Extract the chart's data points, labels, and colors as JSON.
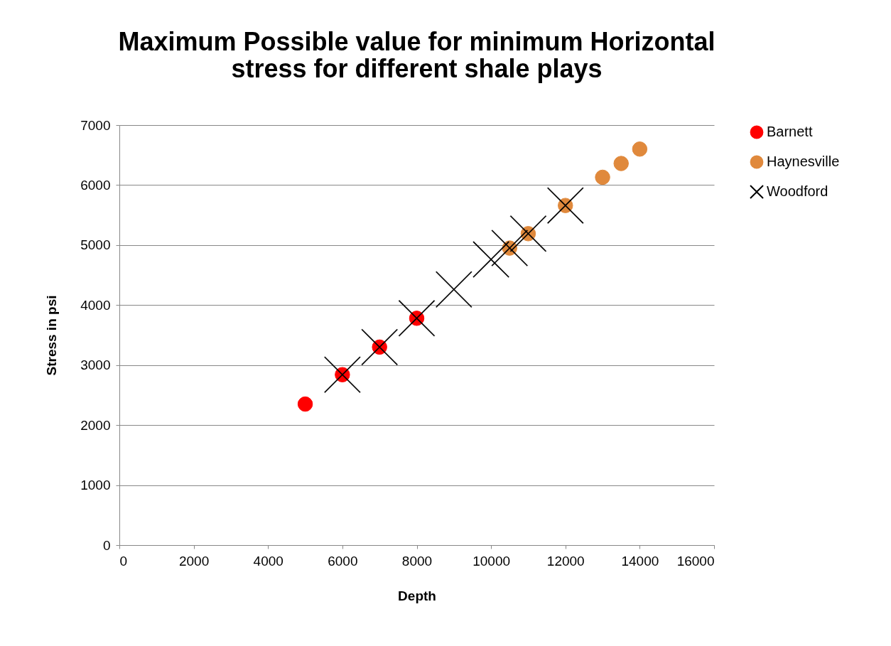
{
  "chart_data": {
    "type": "scatter",
    "title": [
      "Maximum Possible value for minimum Horizontal",
      "stress for different shale plays"
    ],
    "xlabel": "Depth",
    "ylabel": "Stress in psi",
    "xlim": [
      0,
      16000
    ],
    "xticks": [
      0,
      2000,
      4000,
      6000,
      8000,
      10000,
      12000,
      14000,
      16000
    ],
    "ylim": [
      0,
      7000
    ],
    "yticks": [
      0,
      1000,
      2000,
      3000,
      4000,
      5000,
      6000,
      7000
    ],
    "grid": "y",
    "legend": "right",
    "series": [
      {
        "name": "Barnett",
        "color": "#ff0000",
        "marker": "circle",
        "x": [
          5000,
          6000,
          7000,
          8000
        ],
        "values": [
          2350,
          2840,
          3300,
          3780
        ]
      },
      {
        "name": "Haynesville",
        "color": "#e0893c",
        "marker": "circle",
        "x": [
          10500,
          11000,
          12000,
          13000,
          13500,
          14000
        ],
        "values": [
          4950,
          5190,
          5660,
          6130,
          6360,
          6600
        ]
      },
      {
        "name": "Woodford",
        "color": "#000000",
        "marker": "cross",
        "x": [
          6000,
          7000,
          8000,
          9000,
          10000,
          10500,
          11000,
          12000
        ],
        "values": [
          2840,
          3300,
          3780,
          4260,
          4760,
          4950,
          5190,
          5660
        ]
      }
    ]
  }
}
